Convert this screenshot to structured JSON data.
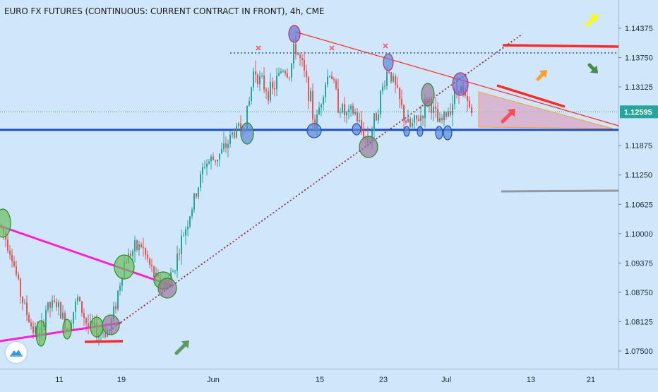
{
  "title": "EURO FX FUTURES (CONTINUOUS: CURRENT CONTRACT IN FRONT), 4h, CME",
  "colors": {
    "background": "#cfe6fb",
    "up_candle": "#26a69a",
    "down_candle": "#ef5350",
    "support_line": "#1f4fbf",
    "channel_line": "#ff1fd8",
    "resistance_line": "#ff2a2a",
    "trend_dotted": "#8b2c4a",
    "price_tag": "#26a69a",
    "triangle_fill": "#d9a7c4",
    "triangle_stroke": "#ff9f2e",
    "gray_line": "#8f9aa4"
  },
  "chart_data": {
    "type": "candlestick",
    "instrument": "EURO FX FUTURES (CONTINUOUS: CURRENT CONTRACT IN FRONT)",
    "interval": "4h",
    "exchange": "CME",
    "ylim": [
      1.0706,
      1.1468
    ],
    "y_ticks": [
      "1.14375",
      "1.13750",
      "1.13125",
      "1.12595",
      "1.11875",
      "1.11250",
      "1.10625",
      "1.10000",
      "1.09375",
      "1.08750",
      "1.08125",
      "1.07500"
    ],
    "current_price": "1.12595",
    "x_ticks": [
      "11",
      "19",
      "Jun",
      "15",
      "23",
      "Jul",
      "13",
      "21"
    ],
    "price_path": [
      [
        0,
        1.102
      ],
      [
        15,
        1.0965
      ],
      [
        30,
        1.0865
      ],
      [
        45,
        1.08
      ],
      [
        57,
        1.078
      ],
      [
        65,
        1.084
      ],
      [
        80,
        1.085
      ],
      [
        95,
        1.08
      ],
      [
        110,
        1.086
      ],
      [
        125,
        1.08
      ],
      [
        140,
        1.079
      ],
      [
        155,
        1.0795
      ],
      [
        165,
        1.086
      ],
      [
        175,
        1.0935
      ],
      [
        185,
        1.096
      ],
      [
        200,
        1.0975
      ],
      [
        215,
        1.092
      ],
      [
        230,
        1.088
      ],
      [
        245,
        1.092
      ],
      [
        260,
        1.1
      ],
      [
        275,
        1.107
      ],
      [
        290,
        1.115
      ],
      [
        305,
        1.116
      ],
      [
        318,
        1.118
      ],
      [
        330,
        1.1215
      ],
      [
        345,
        1.123
      ],
      [
        352,
        1.127
      ],
      [
        360,
        1.1355
      ],
      [
        370,
        1.132
      ],
      [
        385,
        1.13
      ],
      [
        400,
        1.1355
      ],
      [
        410,
        1.134
      ],
      [
        418,
        1.14
      ],
      [
        428,
        1.1355
      ],
      [
        438,
        1.13
      ],
      [
        446,
        1.1225
      ],
      [
        458,
        1.131
      ],
      [
        468,
        1.135
      ],
      [
        478,
        1.128
      ],
      [
        490,
        1.125
      ],
      [
        502,
        1.126
      ],
      [
        512,
        1.122
      ],
      [
        522,
        1.1195
      ],
      [
        532,
        1.125
      ],
      [
        542,
        1.131
      ],
      [
        550,
        1.1355
      ],
      [
        560,
        1.131
      ],
      [
        572,
        1.125
      ],
      [
        580,
        1.1225
      ],
      [
        590,
        1.124
      ],
      [
        598,
        1.1255
      ],
      [
        606,
        1.129
      ],
      [
        614,
        1.126
      ],
      [
        622,
        1.123
      ],
      [
        632,
        1.1255
      ],
      [
        642,
        1.1285
      ],
      [
        650,
        1.132
      ],
      [
        658,
        1.1285
      ],
      [
        668,
        1.1255
      ]
    ],
    "horizontal_levels": [
      1.1385,
      1.1221
    ],
    "annotations": [
      {
        "kind": "triangle-shaded-zone"
      },
      {
        "kind": "arrow-up-right",
        "color": "#ffff00"
      },
      {
        "kind": "arrow-up-right",
        "color": "#ff9f2e"
      },
      {
        "kind": "arrow-down-right",
        "color": "#4a8a4a"
      },
      {
        "kind": "arrow-up-right",
        "color": "#ff4a5a"
      },
      {
        "kind": "arrow-up-right",
        "color": "#5e9a62"
      }
    ]
  }
}
